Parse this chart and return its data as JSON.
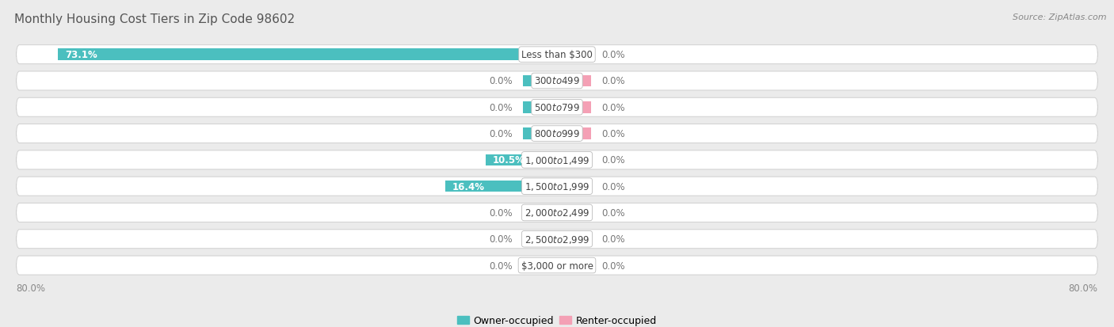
{
  "title": "Monthly Housing Cost Tiers in Zip Code 98602",
  "source": "Source: ZipAtlas.com",
  "categories": [
    "Less than $300",
    "$300 to $499",
    "$500 to $799",
    "$800 to $999",
    "$1,000 to $1,499",
    "$1,500 to $1,999",
    "$2,000 to $2,499",
    "$2,500 to $2,999",
    "$3,000 or more"
  ],
  "owner_values": [
    73.1,
    0.0,
    0.0,
    0.0,
    10.5,
    16.4,
    0.0,
    0.0,
    0.0
  ],
  "renter_values": [
    0.0,
    0.0,
    0.0,
    0.0,
    0.0,
    0.0,
    0.0,
    0.0,
    0.0
  ],
  "owner_color": "#4BBFBF",
  "renter_color": "#F4A0B5",
  "bg_color": "#ebebeb",
  "row_bg_color": "#f5f5f5",
  "row_border_color": "#d0d0d0",
  "x_max": 80.0,
  "x_min": -80.0,
  "stub_size": 5.0,
  "title_fontsize": 11,
  "source_fontsize": 8,
  "bar_label_fontsize": 8.5,
  "category_fontsize": 8.5,
  "legend_fontsize": 9,
  "axis_tick_fontsize": 8.5
}
